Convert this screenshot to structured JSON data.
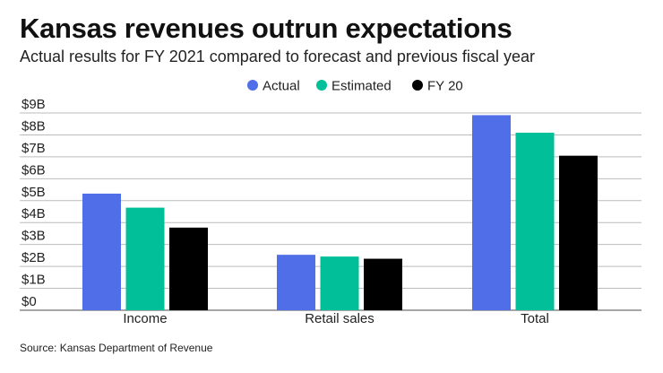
{
  "chart_data": {
    "type": "bar",
    "title": "Kansas revenues outrun expectations",
    "subtitle": "Actual results for FY 2021 compared to forecast and previous fiscal year",
    "categories": [
      "Income",
      "Retail sales",
      "Total"
    ],
    "series": [
      {
        "name": "Actual",
        "color": "#4f6ee8",
        "values": [
          5.32,
          2.53,
          8.9
        ]
      },
      {
        "name": "Estimated",
        "color": "#00bf99",
        "values": [
          4.68,
          2.45,
          8.1
        ]
      },
      {
        "name": "FY 20",
        "color": "#000000",
        "values": [
          3.77,
          2.35,
          7.05
        ]
      }
    ],
    "ylim": [
      0,
      9
    ],
    "yticks": [
      0,
      1,
      2,
      3,
      4,
      5,
      6,
      7,
      8,
      9
    ],
    "ytick_labels": [
      "$0",
      "$1B",
      "$2B",
      "$3B",
      "$4B",
      "$5B",
      "$6B",
      "$7B",
      "$8B",
      "$9B"
    ],
    "xlabel": "",
    "ylabel": "",
    "grid": true,
    "legend": "top-center",
    "source": "Source: Kansas Department of Revenue"
  }
}
